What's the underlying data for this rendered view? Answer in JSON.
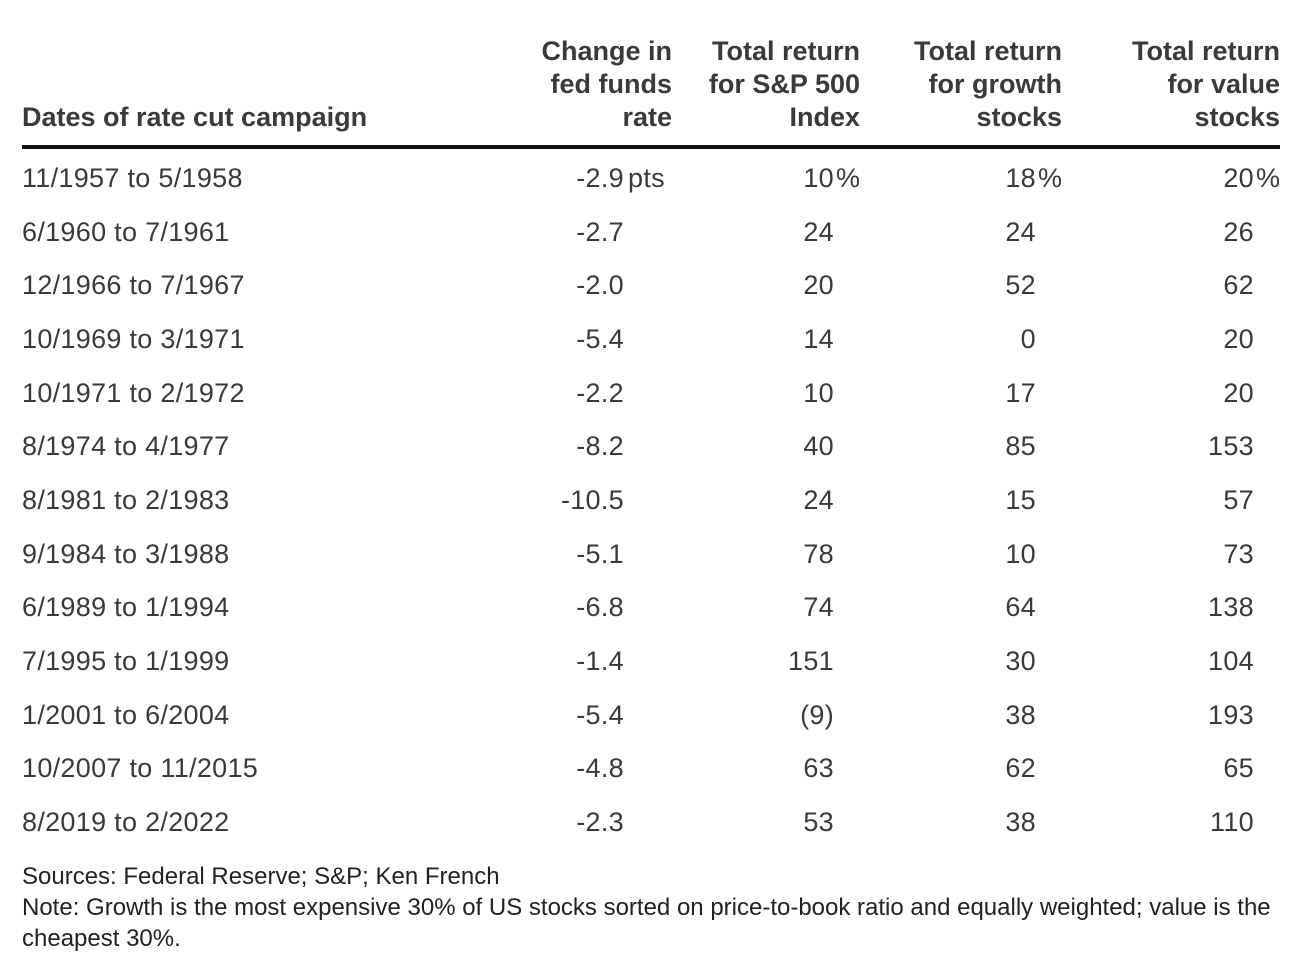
{
  "table": {
    "headers": {
      "dates": "Dates of rate cut campaign",
      "fed": "Change in\nfed funds\nrate",
      "sp": "Total return\nfor S&P 500\nIndex",
      "growth": "Total return\nfor growth\nstocks",
      "value": "Total return\nfor value\nstocks"
    },
    "rows": [
      {
        "dates": "11/1957 to 5/1958",
        "fed": "-2.9",
        "fed_unit": " pts",
        "sp": "10",
        "sp_unit": "%",
        "growth": "18",
        "growth_unit": "%",
        "value": "20",
        "value_unit": "%"
      },
      {
        "dates": "6/1960 to 7/1961",
        "fed": "-2.7",
        "fed_unit": "",
        "sp": "24",
        "sp_unit": "",
        "growth": "24",
        "growth_unit": "",
        "value": "26",
        "value_unit": ""
      },
      {
        "dates": "12/1966 to 7/1967",
        "fed": "-2.0",
        "fed_unit": "",
        "sp": "20",
        "sp_unit": "",
        "growth": "52",
        "growth_unit": "",
        "value": "62",
        "value_unit": ""
      },
      {
        "dates": "10/1969 to 3/1971",
        "fed": "-5.4",
        "fed_unit": "",
        "sp": "14",
        "sp_unit": "",
        "growth": "0",
        "growth_unit": "",
        "value": "20",
        "value_unit": ""
      },
      {
        "dates": "10/1971 to 2/1972",
        "fed": "-2.2",
        "fed_unit": "",
        "sp": "10",
        "sp_unit": "",
        "growth": "17",
        "growth_unit": "",
        "value": "20",
        "value_unit": ""
      },
      {
        "dates": "8/1974 to 4/1977",
        "fed": "-8.2",
        "fed_unit": "",
        "sp": "40",
        "sp_unit": "",
        "growth": "85",
        "growth_unit": "",
        "value": "153",
        "value_unit": ""
      },
      {
        "dates": "8/1981 to 2/1983",
        "fed": "-10.5",
        "fed_unit": "",
        "sp": "24",
        "sp_unit": "",
        "growth": "15",
        "growth_unit": "",
        "value": "57",
        "value_unit": ""
      },
      {
        "dates": "9/1984 to 3/1988",
        "fed": "-5.1",
        "fed_unit": "",
        "sp": "78",
        "sp_unit": "",
        "growth": "10",
        "growth_unit": "",
        "value": "73",
        "value_unit": ""
      },
      {
        "dates": "6/1989 to 1/1994",
        "fed": "-6.8",
        "fed_unit": "",
        "sp": "74",
        "sp_unit": "",
        "growth": "64",
        "growth_unit": "",
        "value": "138",
        "value_unit": ""
      },
      {
        "dates": "7/1995 to 1/1999",
        "fed": "-1.4",
        "fed_unit": "",
        "sp": "151",
        "sp_unit": "",
        "growth": "30",
        "growth_unit": "",
        "value": "104",
        "value_unit": ""
      },
      {
        "dates": "1/2001 to 6/2004",
        "fed": "-5.4",
        "fed_unit": "",
        "sp": "(9)",
        "sp_unit": "",
        "growth": "38",
        "growth_unit": "",
        "value": "193",
        "value_unit": ""
      },
      {
        "dates": "10/2007 to 11/2015",
        "fed": "-4.8",
        "fed_unit": "",
        "sp": "63",
        "sp_unit": "",
        "growth": "62",
        "growth_unit": "",
        "value": "65",
        "value_unit": ""
      },
      {
        "dates": "8/2019 to 2/2022",
        "fed": "-2.3",
        "fed_unit": "",
        "sp": "53",
        "sp_unit": "",
        "growth": "38",
        "growth_unit": "",
        "value": "110",
        "value_unit": ""
      }
    ]
  },
  "footer": {
    "sources": "Sources: Federal Reserve; S&P; Ken French",
    "note": "Note: Growth is the most expensive 30% of US stocks sorted on price-to-book ratio and equally weighted; value is the cheapest 30%."
  }
}
